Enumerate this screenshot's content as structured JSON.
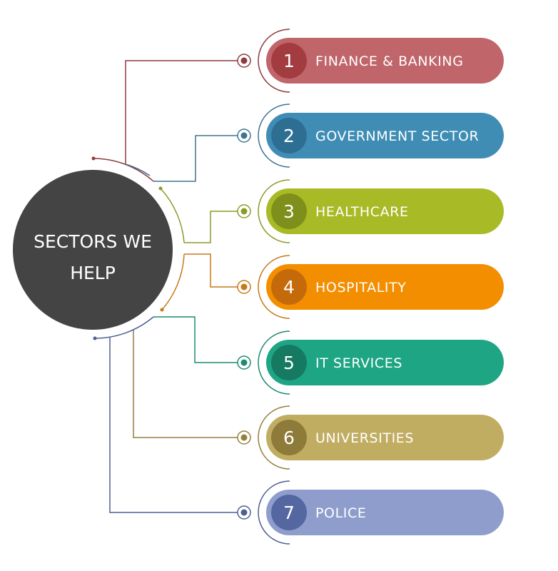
{
  "hub": {
    "title_line1": "SECTORS WE",
    "title_line2": "HELP",
    "color": "#444444"
  },
  "sectors": [
    {
      "number": "1",
      "label": "FINANCE & BANKING",
      "color": "#C0656A",
      "dark": "#A23C40",
      "line": "#8E3A3E"
    },
    {
      "number": "2",
      "label": "GOVERNMENT SECTOR",
      "color": "#3F8DB5",
      "dark": "#2E6E93",
      "line": "#3E7590"
    },
    {
      "number": "3",
      "label": "HEALTHCARE",
      "color": "#A8BA25",
      "dark": "#7F8F1C",
      "line": "#8C9A2A"
    },
    {
      "number": "4",
      "label": "HOSPITALITY",
      "color": "#F38E00",
      "dark": "#C46A0B",
      "line": "#C87817"
    },
    {
      "number": "5",
      "label": "IT SERVICES",
      "color": "#1EA584",
      "dark": "#167A63",
      "line": "#1E8A70"
    },
    {
      "number": "6",
      "label": "UNIVERSITIES",
      "color": "#C1AD62",
      "dark": "#8E7B3A",
      "line": "#94803C"
    },
    {
      "number": "7",
      "label": "POLICE",
      "color": "#8E9DCB",
      "dark": "#5467A0",
      "line": "#4E5F92"
    }
  ]
}
